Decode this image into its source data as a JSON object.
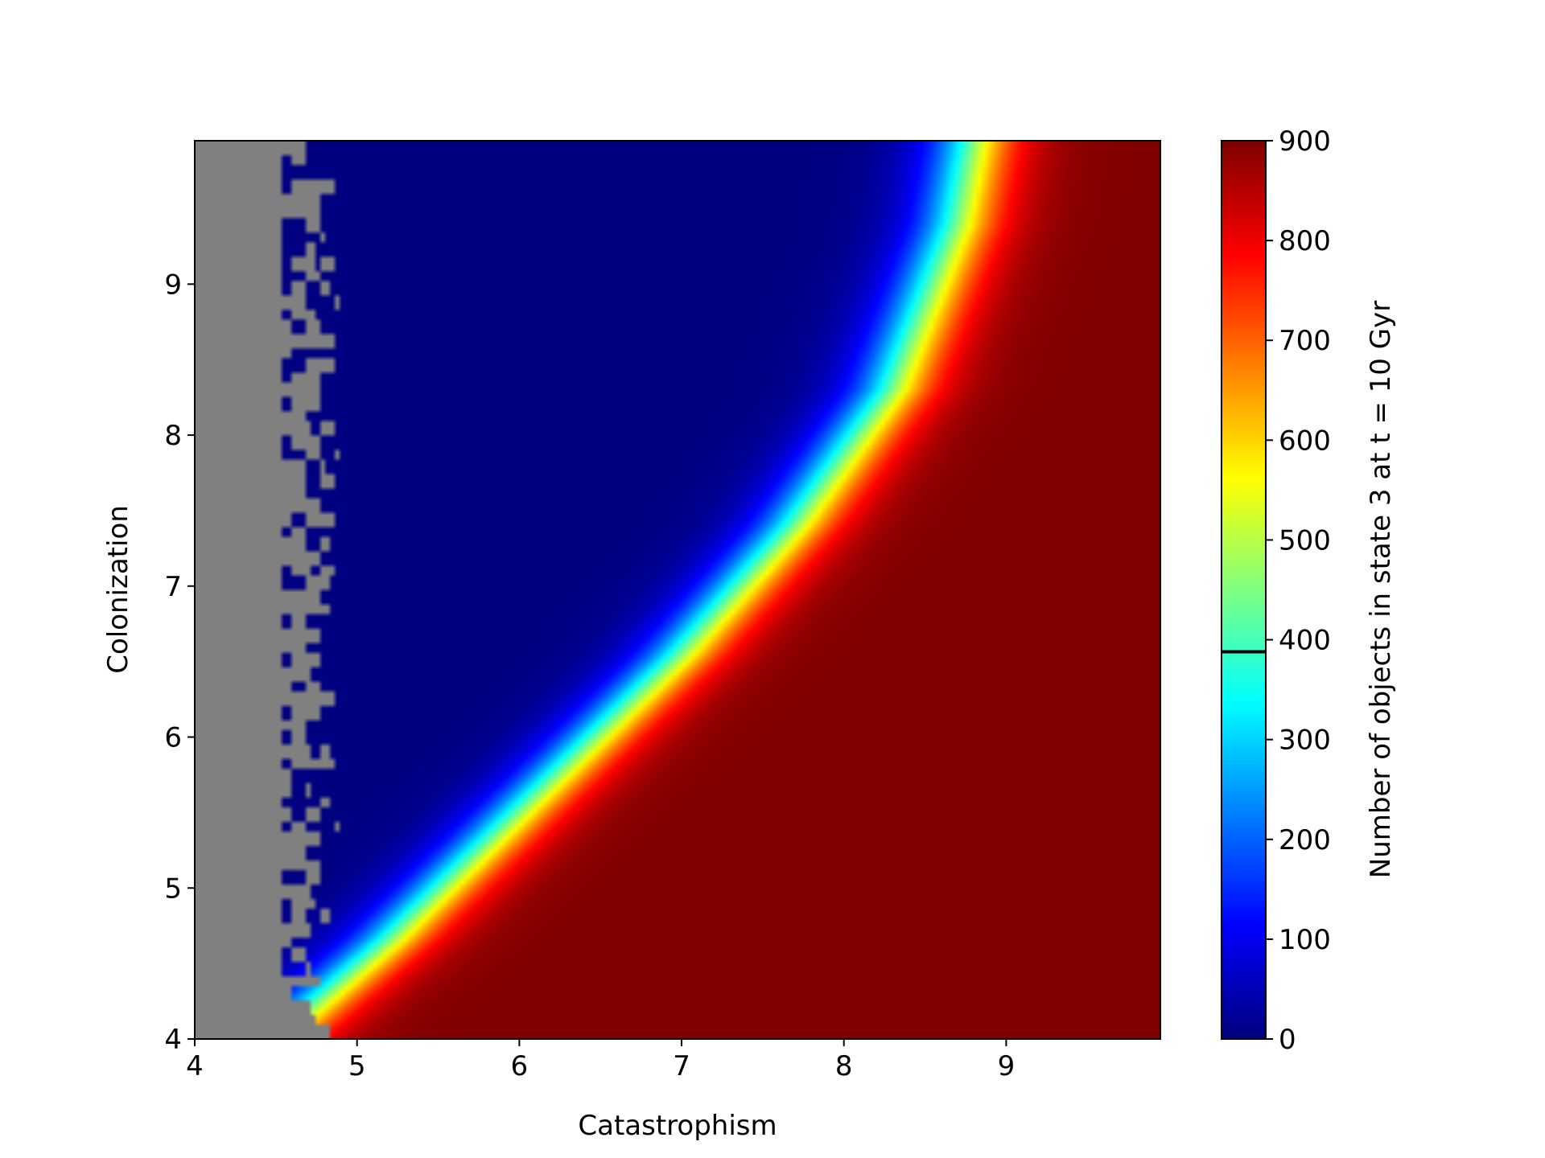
{
  "chart_data": {
    "type": "heatmap",
    "xlabel": "Catastrophism",
    "ylabel": "Colonization",
    "xlim": [
      4,
      9.95
    ],
    "ylim": [
      4,
      9.95
    ],
    "xticks": [
      4,
      5,
      6,
      7,
      8,
      9
    ],
    "yticks": [
      4,
      5,
      6,
      7,
      8,
      9
    ],
    "xtick_labels": [
      "4",
      "5",
      "6",
      "7",
      "8",
      "9"
    ],
    "ytick_labels": [
      "4",
      "5",
      "6",
      "7",
      "8",
      "9"
    ],
    "colormap": "jet",
    "masked_color": "#808080",
    "colorbar": {
      "label": "Number of objects in state 3 at t = 10 Gyr",
      "range": [
        0,
        900
      ],
      "ticks": [
        0,
        100,
        200,
        300,
        400,
        500,
        600,
        700,
        800,
        900
      ],
      "tick_labels": [
        "0",
        "100",
        "200",
        "300",
        "400",
        "500",
        "600",
        "700",
        "800",
        "900"
      ],
      "marked_level": 388
    },
    "features": {
      "masked_region_x_max": 4.6,
      "transition_line": [
        [
          4.5,
          4.0
        ],
        [
          5.2,
          4.65
        ],
        [
          6.0,
          5.5
        ],
        [
          7.0,
          6.55
        ],
        [
          7.7,
          7.4
        ],
        [
          8.3,
          8.3
        ],
        [
          8.7,
          9.4
        ],
        [
          8.8,
          9.95
        ]
      ],
      "transition_width": 0.5,
      "region_values": {
        "upper_left": 0,
        "lower_right": 900
      }
    }
  }
}
